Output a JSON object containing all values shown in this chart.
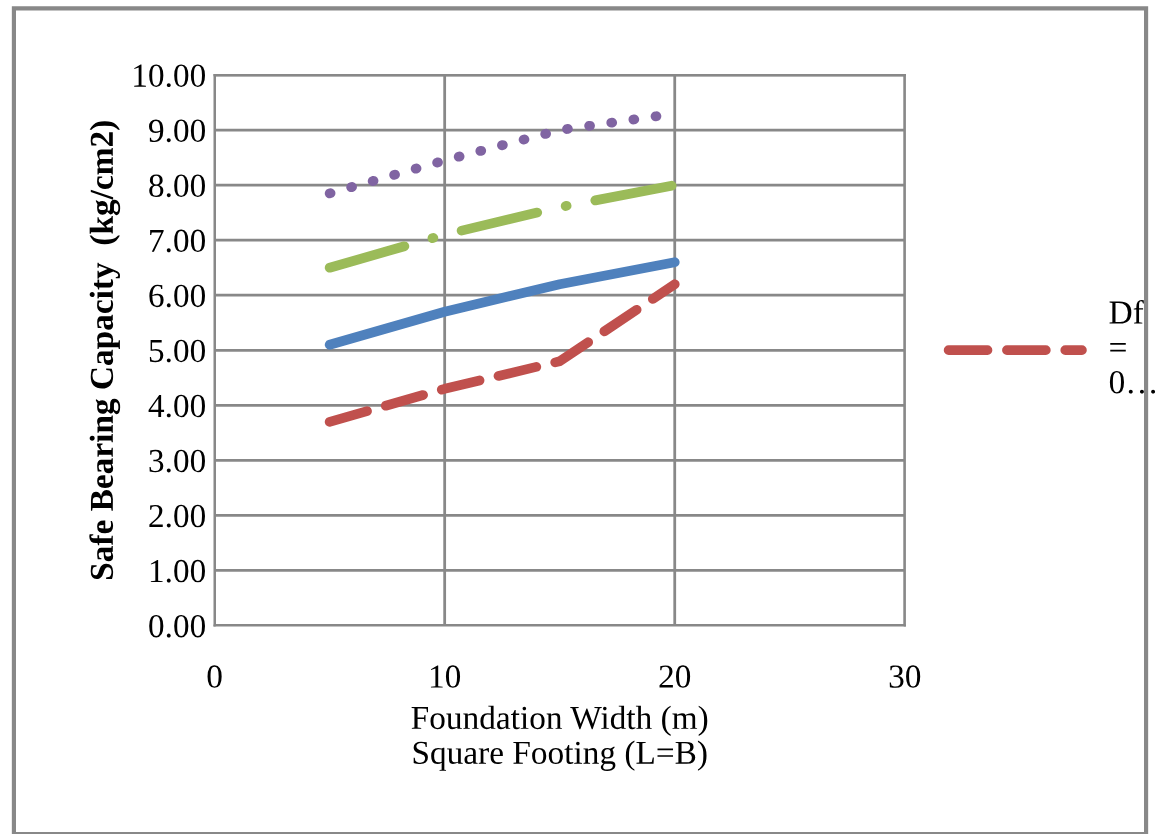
{
  "chart_data": {
    "type": "line",
    "xlabel": "Foundation Width (m)\nSquare Footing (L=B)",
    "ylabel": "Safe Bearing Capacity  (kg/cm2)",
    "x": [
      5,
      10,
      15,
      20
    ],
    "series": [
      {
        "name": "Df = 0…",
        "color": "#c0504d",
        "line_style": "dashed",
        "values": [
          3.7,
          4.3,
          4.8,
          6.2
        ]
      },
      {
        "color": "#4f81bd",
        "line_style": "solid",
        "values": [
          5.1,
          5.7,
          6.2,
          6.6
        ]
      },
      {
        "color": "#9bbb59",
        "line_style": "dashdot",
        "values": [
          6.5,
          7.1,
          7.6,
          8.0
        ]
      },
      {
        "color": "#8064a2",
        "line_style": "dotted",
        "values": [
          7.85,
          8.45,
          9.0,
          9.3
        ]
      }
    ],
    "xlim": [
      0,
      30
    ],
    "xticks": [
      0,
      10,
      20,
      30
    ],
    "ylim": [
      0,
      10
    ],
    "yticks": [
      {
        "value": 0,
        "label": "0.00"
      },
      {
        "value": 1,
        "label": "1.00"
      },
      {
        "value": 2,
        "label": "2.00"
      },
      {
        "value": 3,
        "label": "3.00"
      },
      {
        "value": 4,
        "label": "4.00"
      },
      {
        "value": 5,
        "label": "5.00"
      },
      {
        "value": 6,
        "label": "6.00"
      },
      {
        "value": 7,
        "label": "7.00"
      },
      {
        "value": 8,
        "label": "8.00"
      },
      {
        "value": 9,
        "label": "9.00"
      },
      {
        "value": 10,
        "label": "10.00"
      }
    ],
    "grid": true,
    "legend": "right",
    "marker": "none"
  }
}
